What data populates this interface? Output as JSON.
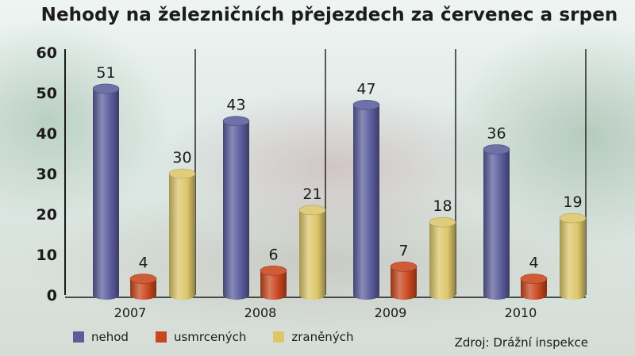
{
  "chart_data": {
    "type": "bar",
    "title": "Nehody na železničních přejezdech za červenec a srpen",
    "categories": [
      "2007",
      "2008",
      "2009",
      "2010"
    ],
    "series": [
      {
        "name": "nehod",
        "values": [
          51,
          43,
          47,
          36
        ],
        "color": "#5a5c9c"
      },
      {
        "name": "usmrcených",
        "values": [
          4,
          6,
          7,
          4
        ],
        "color": "#c8461e"
      },
      {
        "name": "zraněných",
        "values": [
          30,
          21,
          18,
          19
        ],
        "color": "#dcc66a"
      }
    ],
    "ylim": [
      0,
      60
    ],
    "yticks": [
      "0",
      "10",
      "20",
      "30",
      "40",
      "50",
      "60"
    ],
    "grid": false,
    "legend_position": "bottom-left",
    "xlabel": "",
    "ylabel": ""
  },
  "source": "Zdroj: Drážní inspekce"
}
